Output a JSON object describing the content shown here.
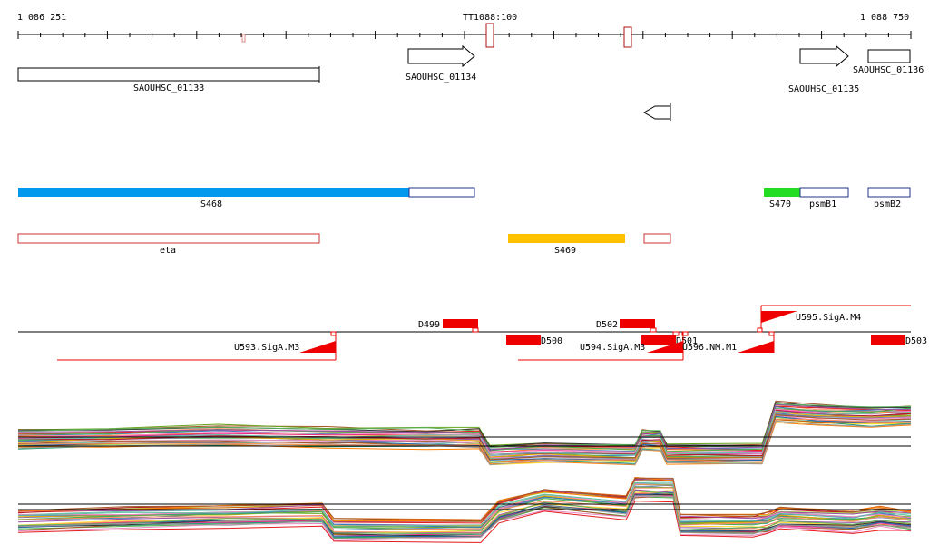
{
  "ruler": {
    "start_label": "1 086 251",
    "end_label": "1 088 750",
    "marker_label": "TT1088:100"
  },
  "genes": [
    {
      "id": "g1",
      "label": "SAOUHSC_01133"
    },
    {
      "id": "g2",
      "label": "SAOUHSC_01134"
    },
    {
      "id": "g3",
      "label": "SAOUHSC_01135"
    },
    {
      "id": "g4",
      "label": "SAOUHSC_01136"
    }
  ],
  "annotations": [
    {
      "id": "s468",
      "label": "S468",
      "color": "#0099ee"
    },
    {
      "id": "s470",
      "label": "S470",
      "color": "#22dd22"
    },
    {
      "id": "psmb1",
      "label": "psmB1"
    },
    {
      "id": "psmb2",
      "label": "psmB2"
    },
    {
      "id": "eta",
      "label": "eta"
    },
    {
      "id": "s469",
      "label": "S469",
      "color": "#ffc000"
    }
  ],
  "features": [
    {
      "id": "d499",
      "label": "D499"
    },
    {
      "id": "d500",
      "label": "D500"
    },
    {
      "id": "d502",
      "label": "D502"
    },
    {
      "id": "d501",
      "label": "D501"
    },
    {
      "id": "d503",
      "label": "D503"
    },
    {
      "id": "u593",
      "label": "U593.SigA.M3"
    },
    {
      "id": "u594",
      "label": "U594.SigA.M3"
    },
    {
      "id": "u596",
      "label": "U596.NM.M1"
    },
    {
      "id": "u595",
      "label": "U595.SigA.M4"
    }
  ],
  "colors": {
    "feature_red": "#ee0000",
    "box_outline": "#000000",
    "eta_outline": "#cc3333",
    "psm_outline": "#223388"
  }
}
